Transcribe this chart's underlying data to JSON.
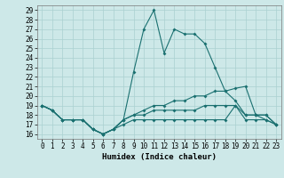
{
  "xlabel": "Humidex (Indice chaleur)",
  "background_color": "#cde8e8",
  "grid_color": "#aad0d0",
  "line_color": "#1a7070",
  "xlim": [
    -0.5,
    23.5
  ],
  "ylim": [
    15.5,
    29.5
  ],
  "yticks": [
    16,
    17,
    18,
    19,
    20,
    21,
    22,
    23,
    24,
    25,
    26,
    27,
    28,
    29
  ],
  "xticks": [
    0,
    1,
    2,
    3,
    4,
    5,
    6,
    7,
    8,
    9,
    10,
    11,
    12,
    13,
    14,
    15,
    16,
    17,
    18,
    19,
    20,
    21,
    22,
    23
  ],
  "line1_x": [
    0,
    1,
    2,
    3,
    4,
    5,
    6,
    7,
    8,
    9,
    10,
    11,
    12,
    13,
    14,
    15,
    16,
    17,
    18,
    19,
    20,
    21,
    22,
    23
  ],
  "line1_y": [
    19.0,
    18.5,
    17.5,
    17.5,
    17.5,
    16.5,
    16.0,
    16.5,
    17.5,
    22.5,
    27.0,
    29.0,
    24.5,
    27.0,
    26.5,
    26.5,
    25.5,
    23.0,
    20.5,
    19.5,
    18.0,
    18.0,
    17.5,
    17.0
  ],
  "line2_x": [
    0,
    1,
    2,
    3,
    4,
    5,
    6,
    7,
    8,
    9,
    10,
    11,
    12,
    13,
    14,
    15,
    16,
    17,
    18,
    19,
    20,
    21,
    22,
    23
  ],
  "line2_y": [
    19.0,
    18.5,
    17.5,
    17.5,
    17.5,
    16.5,
    16.0,
    16.5,
    17.5,
    18.0,
    18.5,
    19.0,
    19.0,
    19.5,
    19.5,
    20.0,
    20.0,
    20.5,
    20.5,
    20.8,
    21.0,
    18.0,
    18.0,
    17.0
  ],
  "line3_x": [
    0,
    1,
    2,
    3,
    4,
    5,
    6,
    7,
    8,
    9,
    10,
    11,
    12,
    13,
    14,
    15,
    16,
    17,
    18,
    19,
    20,
    21,
    22,
    23
  ],
  "line3_y": [
    19.0,
    18.5,
    17.5,
    17.5,
    17.5,
    16.5,
    16.0,
    16.5,
    17.0,
    17.5,
    17.5,
    17.5,
    17.5,
    17.5,
    17.5,
    17.5,
    17.5,
    17.5,
    17.5,
    19.0,
    17.5,
    17.5,
    17.5,
    17.0
  ],
  "line4_x": [
    0,
    1,
    2,
    3,
    4,
    5,
    6,
    7,
    8,
    9,
    10,
    11,
    12,
    13,
    14,
    15,
    16,
    17,
    18,
    19,
    20,
    21,
    22,
    23
  ],
  "line4_y": [
    19.0,
    18.5,
    17.5,
    17.5,
    17.5,
    16.5,
    16.0,
    16.5,
    17.5,
    18.0,
    18.0,
    18.5,
    18.5,
    18.5,
    18.5,
    18.5,
    19.0,
    19.0,
    19.0,
    19.0,
    18.0,
    18.0,
    18.0,
    17.0
  ],
  "tick_fontsize": 5.5,
  "xlabel_fontsize": 6.5,
  "marker_size": 2.0,
  "line_width": 0.8
}
